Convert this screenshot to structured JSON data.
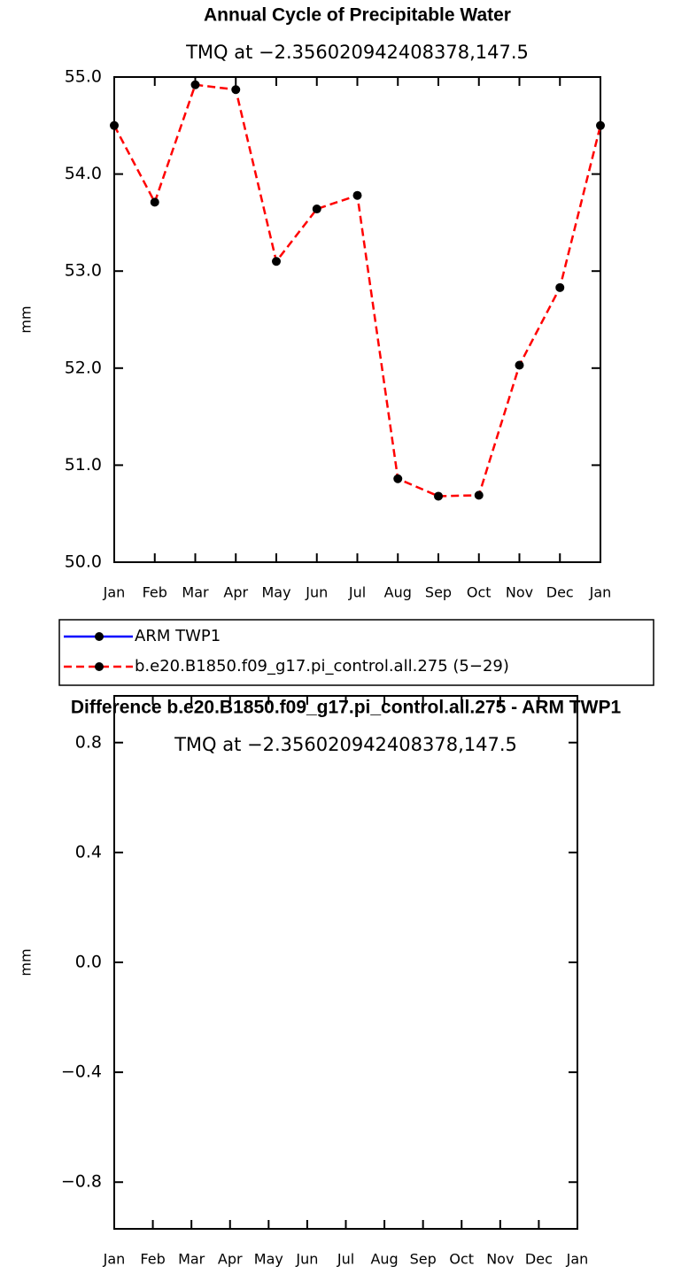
{
  "chart_data": [
    {
      "type": "line",
      "title": "Annual Cycle of Precipitable Water",
      "subtitle": "TMQ at −2.356020942408378,147.5",
      "ylabel": "mm",
      "categories": [
        "Jan",
        "Feb",
        "Mar",
        "Apr",
        "May",
        "Jun",
        "Jul",
        "Aug",
        "Sep",
        "Oct",
        "Nov",
        "Dec",
        "Jan"
      ],
      "series": [
        {
          "name": "ARM TWP1",
          "color": "#0000ff",
          "dash": false,
          "values": [
            null,
            null,
            null,
            null,
            null,
            null,
            null,
            null,
            null,
            null,
            null,
            null,
            null
          ]
        },
        {
          "name": "b.e20.B1850.f09_g17.pi_control.all.275 (5−29)",
          "color": "#ff0000",
          "dash": true,
          "values": [
            54.5,
            53.71,
            54.92,
            54.87,
            53.1,
            53.64,
            53.78,
            50.86,
            50.68,
            50.69,
            52.03,
            52.83,
            54.5
          ]
        }
      ],
      "marker_color": "#000000",
      "ylim": [
        50,
        55
      ],
      "yticks": [
        {
          "value": 50,
          "label": "50.0"
        },
        {
          "value": 51,
          "label": "51.0"
        },
        {
          "value": 52,
          "label": "52.0"
        },
        {
          "value": 53,
          "label": "53.0"
        },
        {
          "value": 54,
          "label": "54.0"
        },
        {
          "value": 55,
          "label": "55.0"
        }
      ],
      "legend": "below"
    },
    {
      "type": "line",
      "title": "Difference b.e20.B1850.f09_g17.pi_control.all.275 - ARM TWP1",
      "subtitle": "TMQ at −2.356020942408378,147.5",
      "ylabel": "mm",
      "categories": [
        "Jan",
        "Feb",
        "Mar",
        "Apr",
        "May",
        "Jun",
        "Jul",
        "Aug",
        "Sep",
        "Oct",
        "Nov",
        "Dec",
        "Jan"
      ],
      "values": [
        null,
        null,
        null,
        null,
        null,
        null,
        null,
        null,
        null,
        null,
        null,
        null,
        null
      ],
      "ylim": [
        -0.97,
        0.97
      ],
      "yticks": [
        {
          "value": -0.8,
          "label": "−0.8"
        },
        {
          "value": -0.4,
          "label": "−0.4"
        },
        {
          "value": 0,
          "label": "0.0"
        },
        {
          "value": 0.4,
          "label": "0.4"
        },
        {
          "value": 0.8,
          "label": "0.8"
        }
      ]
    }
  ]
}
